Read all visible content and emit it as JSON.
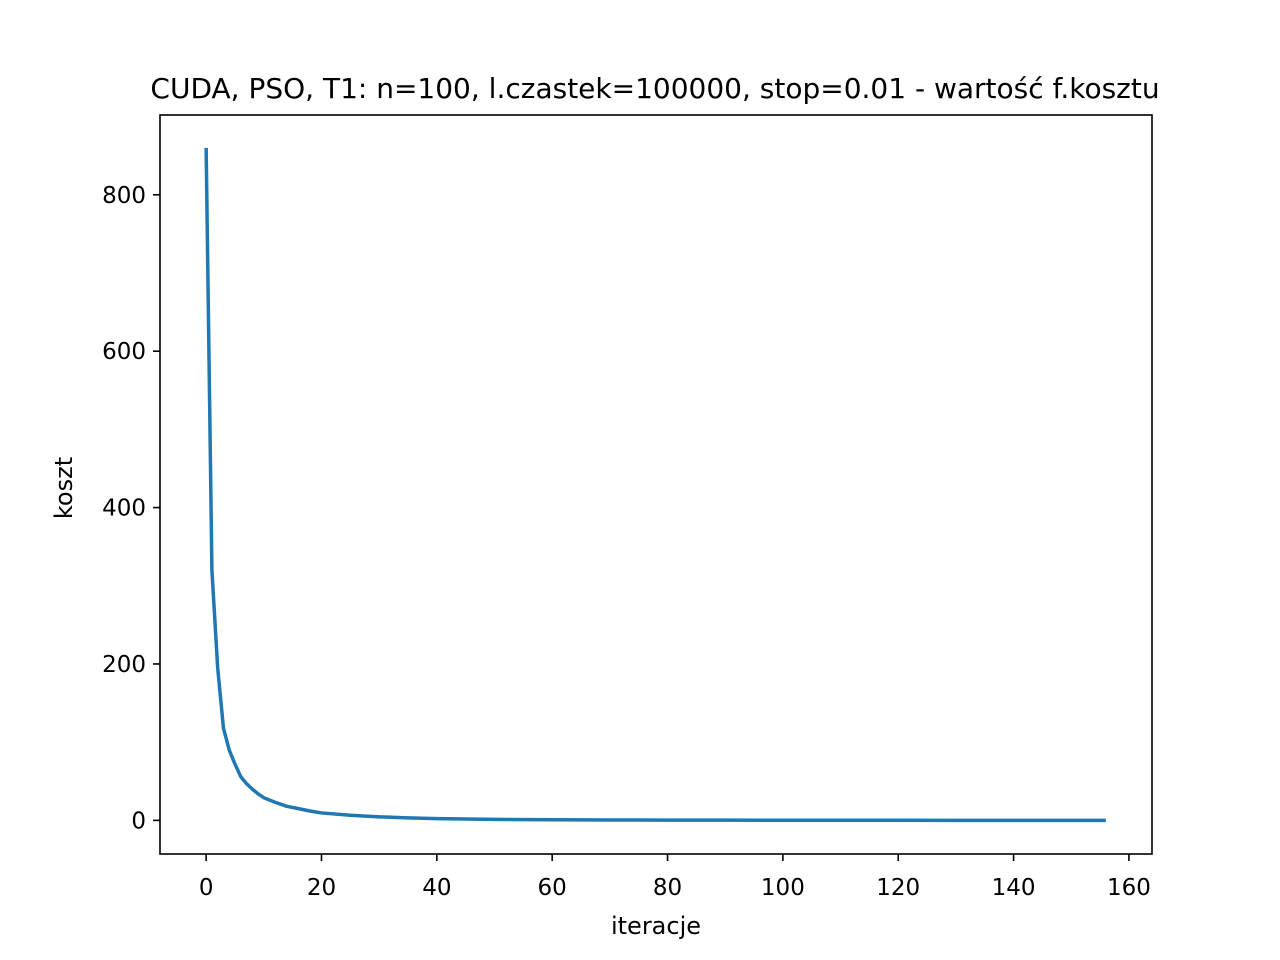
{
  "chart_data": {
    "type": "line",
    "title": "CUDA, PSO, T1: n=100, l.czastek=100000, stop=0.01 - wartość f.kosztu",
    "xlabel": "iteracje",
    "ylabel": "koszt",
    "xlim": [
      -8,
      164
    ],
    "ylim": [
      -43,
      902
    ],
    "xticks": [
      0,
      20,
      40,
      60,
      80,
      100,
      120,
      140,
      160
    ],
    "yticks": [
      0,
      200,
      400,
      600,
      800
    ],
    "grid": false,
    "series": [
      {
        "name": "koszt",
        "color": "#1f77b4",
        "x": [
          0,
          1,
          2,
          3,
          4,
          5,
          6,
          7,
          8,
          9,
          10,
          12,
          14,
          16,
          18,
          20,
          25,
          30,
          35,
          40,
          50,
          60,
          70,
          80,
          90,
          100,
          110,
          120,
          130,
          140,
          150,
          156
        ],
        "y": [
          860,
          320,
          195,
          118,
          90,
          72,
          56,
          47,
          40,
          34,
          29,
          23,
          18,
          15,
          12,
          9.5,
          6.5,
          4.5,
          3.2,
          2.3,
          1.3,
          0.8,
          0.5,
          0.35,
          0.25,
          0.18,
          0.13,
          0.1,
          0.07,
          0.05,
          0.03,
          0.01
        ]
      }
    ]
  }
}
